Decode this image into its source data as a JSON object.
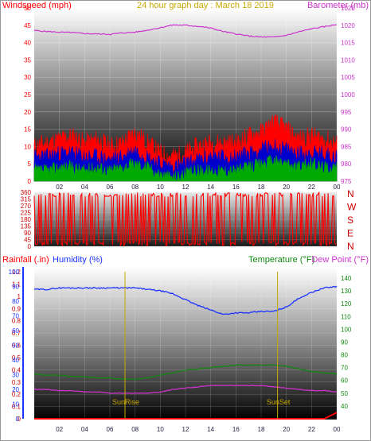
{
  "header": {
    "title": "24 hour graph day : March 18 2019"
  },
  "colors": {
    "wind_gust": "#ff0000",
    "wind_avg": "#0000cc",
    "wind_low": "#00aa00",
    "barometer": "#cc33cc",
    "direction": "#ff0000",
    "direction_letters": "#cc0000",
    "rainfall": "#ff0000",
    "humidity": "#1a33ff",
    "temperature": "#118811",
    "dew_point": "#cc33cc",
    "sun_markers": "#c8a800",
    "title": "#c8a800"
  },
  "chart_data": [
    {
      "type": "line",
      "name": "wind_barometer",
      "ylabel_left": "Windspeed (mph)",
      "ylabel_right": "Barometer (mb)",
      "ylim_left": [
        0,
        50
      ],
      "yticks_left": [
        0,
        5,
        10,
        15,
        20,
        25,
        30,
        35,
        40,
        45,
        50
      ],
      "ylim_right": [
        975,
        1025
      ],
      "yticks_right": [
        975,
        980,
        985,
        990,
        995,
        1000,
        1005,
        1010,
        1015,
        1020,
        1025
      ],
      "x_ticks": [
        "02",
        "04",
        "06",
        "08",
        "10",
        "12",
        "14",
        "16",
        "18",
        "20",
        "22",
        "00"
      ],
      "grid": true,
      "wind_series": {
        "x": [
          0,
          1,
          2,
          3,
          4,
          5,
          6,
          7,
          8,
          9,
          10,
          11,
          12,
          13,
          14,
          15,
          16,
          17,
          18,
          19,
          20,
          21,
          22,
          23,
          24
        ],
        "gust": [
          10,
          11,
          12,
          13,
          11,
          12,
          10,
          11,
          14,
          11,
          8,
          7,
          8,
          10,
          11,
          11,
          11,
          13,
          14,
          17,
          15,
          12,
          13,
          12,
          11
        ],
        "average": [
          7,
          7,
          8,
          8,
          7,
          7,
          6,
          7,
          9,
          7,
          5,
          4,
          5,
          6,
          7,
          7,
          7,
          8,
          9,
          10,
          9,
          8,
          8,
          8,
          7
        ],
        "low": [
          3,
          3,
          4,
          4,
          3,
          4,
          3,
          4,
          5,
          4,
          2,
          1,
          2,
          3,
          3,
          3,
          3,
          4,
          5,
          6,
          5,
          4,
          5,
          4,
          4
        ]
      },
      "barometer_series": {
        "x": [
          0,
          1,
          2,
          3,
          4,
          5,
          6,
          7,
          8,
          9,
          10,
          11,
          12,
          13,
          14,
          15,
          16,
          17,
          18,
          19,
          20,
          21,
          22,
          23,
          24
        ],
        "values": [
          1018.5,
          1018.2,
          1018.0,
          1017.9,
          1017.6,
          1017.5,
          1017.4,
          1017.8,
          1018.0,
          1018.6,
          1019.3,
          1020.1,
          1020.0,
          1019.7,
          1019.2,
          1018.2,
          1017.5,
          1016.9,
          1016.6,
          1016.6,
          1017.1,
          1018.1,
          1019.0,
          1019.6,
          1020.2
        ]
      }
    },
    {
      "type": "line",
      "name": "wind_direction",
      "ylim": [
        0,
        360
      ],
      "yticks": [
        0,
        45,
        90,
        135,
        180,
        225,
        270,
        315,
        360
      ],
      "right_labels": [
        "N",
        "W",
        "S",
        "E",
        "N"
      ],
      "x_hours": [
        0,
        0.8,
        1.6,
        2.4,
        3.2,
        4.0,
        4.8,
        5.6,
        6.4,
        7.2,
        8.0,
        8.8,
        9.6,
        10.4,
        11.2,
        12.0,
        12.8,
        13.6,
        14.4,
        15.2,
        16.0,
        16.8,
        17.6,
        18.4,
        19.2,
        20.0,
        20.8,
        21.6,
        22.4,
        23.2,
        24.0
      ],
      "values": [
        20,
        340,
        15,
        330,
        10,
        345,
        25,
        20,
        10,
        350,
        15,
        340,
        355,
        5,
        350,
        10,
        340,
        15,
        355,
        20,
        345,
        10,
        15,
        330,
        5,
        345,
        350,
        10,
        355,
        15,
        20
      ]
    },
    {
      "type": "line",
      "name": "rain_humidity_temperature",
      "ylabel_left_1": "Rainfall (.in)",
      "ylabel_left_2": "Humidity (%)",
      "ylabel_right_1": "Temperature (°F)",
      "ylabel_right_2": "Dew Point (°F)",
      "rain_ylim": [
        0,
        1.2
      ],
      "rain_yticks": [
        0,
        0.1,
        0.2,
        0.3,
        0.4,
        0.5,
        0.6,
        0.7,
        0.8,
        0.9,
        1,
        1.1,
        1.2
      ],
      "humidity_ylim": [
        0,
        100
      ],
      "humidity_yticks": [
        0,
        10,
        20,
        30,
        40,
        50,
        60,
        70,
        80,
        90,
        100
      ],
      "temp_ylim": [
        30,
        145
      ],
      "temp_yticks": [
        40,
        50,
        60,
        70,
        80,
        90,
        100,
        110,
        120,
        130,
        140
      ],
      "x_ticks": [
        "02",
        "04",
        "06",
        "08",
        "10",
        "12",
        "14",
        "16",
        "18",
        "20",
        "22",
        "00"
      ],
      "x": [
        0,
        1,
        2,
        3,
        4,
        5,
        6,
        7,
        8,
        9,
        10,
        11,
        12,
        13,
        14,
        15,
        16,
        17,
        18,
        19,
        20,
        21,
        22,
        23,
        24
      ],
      "humidity": [
        88,
        88,
        89,
        89,
        89,
        89,
        89,
        89,
        89,
        88,
        87,
        85,
        81,
        77,
        74,
        71,
        72,
        72,
        73,
        73,
        76,
        82,
        86,
        89,
        90
      ],
      "temperature": [
        65,
        64,
        64,
        63,
        63,
        62,
        62,
        61,
        61,
        62,
        64,
        66,
        68,
        69,
        70,
        71,
        72,
        72,
        72,
        72,
        71,
        69,
        67,
        66,
        65
      ],
      "dew_point": [
        53,
        53,
        52,
        52,
        51,
        51,
        50,
        50,
        50,
        50,
        51,
        53,
        54,
        55,
        56,
        56,
        56,
        56,
        56,
        55,
        54,
        53,
        52,
        52,
        51
      ],
      "rain": [
        0,
        0,
        0,
        0,
        0,
        0,
        0,
        0,
        0,
        0,
        0,
        0,
        0,
        0,
        0,
        0,
        0,
        0,
        0,
        0,
        0,
        0,
        0,
        0,
        0.05
      ],
      "markers": [
        {
          "label": "SunRise",
          "hour": 7.2
        },
        {
          "label": "SunSet",
          "hour": 19.3
        }
      ]
    }
  ]
}
